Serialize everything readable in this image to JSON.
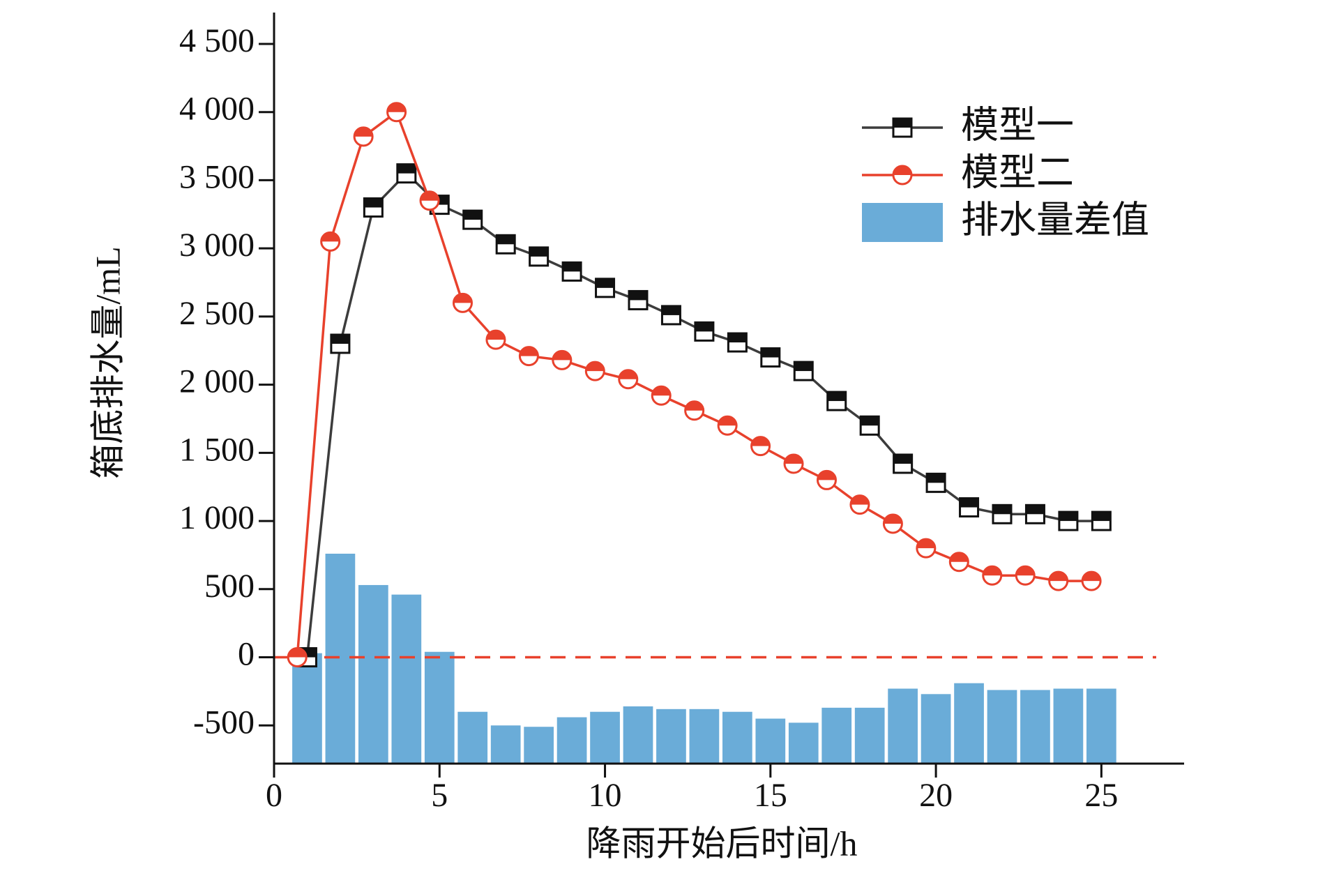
{
  "chart_data": {
    "type": "combo",
    "xlabel": "降雨开始后时间/h",
    "ylabel": "箱底排水量/mL",
    "xlim": [
      0,
      27.5
    ],
    "ylim": [
      -780,
      4730
    ],
    "xticks": [
      0,
      5,
      10,
      15,
      20,
      25
    ],
    "yticks": [
      -500,
      0,
      500,
      {
        "value": 1000,
        "label": "1 000"
      },
      {
        "value": 1500,
        "label": "1 500"
      },
      {
        "value": 2000,
        "label": "2 000"
      },
      {
        "value": 2500,
        "label": "2 500"
      },
      {
        "value": 3000,
        "label": "3 000"
      },
      {
        "value": 3500,
        "label": "3 500"
      },
      {
        "value": 4000,
        "label": "4 000"
      },
      {
        "value": 4500,
        "label": "4 500"
      }
    ],
    "hline": {
      "value": 0,
      "color": "#e8412c",
      "style": "dashed"
    },
    "series": [
      {
        "name": "模型一",
        "type": "line",
        "color": "#3c3c3c",
        "marker_color": "#111111",
        "marker": "square",
        "x": [
          1,
          2,
          3,
          4,
          5,
          6,
          7,
          8,
          9,
          10,
          11,
          12,
          13,
          14,
          15,
          16,
          17,
          18,
          19,
          20,
          21,
          22,
          23,
          24,
          25
        ],
        "values": [
          0,
          2300,
          3300,
          3550,
          3320,
          3210,
          3030,
          2940,
          2830,
          2710,
          2620,
          2510,
          2390,
          2310,
          2200,
          2100,
          1880,
          1700,
          1420,
          1280,
          1100,
          1050,
          1050,
          1000,
          1000
        ]
      },
      {
        "name": "模型二",
        "type": "line",
        "color": "#e8412c",
        "marker_color": "#e8412c",
        "marker": "circle",
        "x": [
          0.7,
          1.7,
          2.7,
          3.7,
          4.7,
          5.7,
          6.7,
          7.7,
          8.7,
          9.7,
          10.7,
          11.7,
          12.7,
          13.7,
          14.7,
          15.7,
          16.7,
          17.7,
          18.7,
          19.7,
          20.7,
          21.7,
          22.7,
          23.7,
          24.7
        ],
        "values": [
          0,
          3050,
          3820,
          4000,
          3350,
          2600,
          2330,
          2210,
          2180,
          2100,
          2040,
          1920,
          1810,
          1700,
          1550,
          1420,
          1300,
          1120,
          980,
          800,
          700,
          600,
          600,
          560,
          560
        ]
      },
      {
        "name": "排水量差值",
        "type": "bar",
        "color": "#6aacd8",
        "x": [
          1,
          2,
          3,
          4,
          5,
          6,
          7,
          8,
          9,
          10,
          11,
          12,
          13,
          14,
          15,
          16,
          17,
          18,
          19,
          20,
          21,
          22,
          23,
          24,
          25
        ],
        "values": [
          30,
          760,
          530,
          460,
          40,
          -400,
          -500,
          -510,
          -440,
          -400,
          -360,
          -380,
          -380,
          -400,
          -450,
          -480,
          -370,
          -370,
          -230,
          -270,
          -190,
          -240,
          -240,
          -230,
          -230
        ]
      }
    ]
  }
}
